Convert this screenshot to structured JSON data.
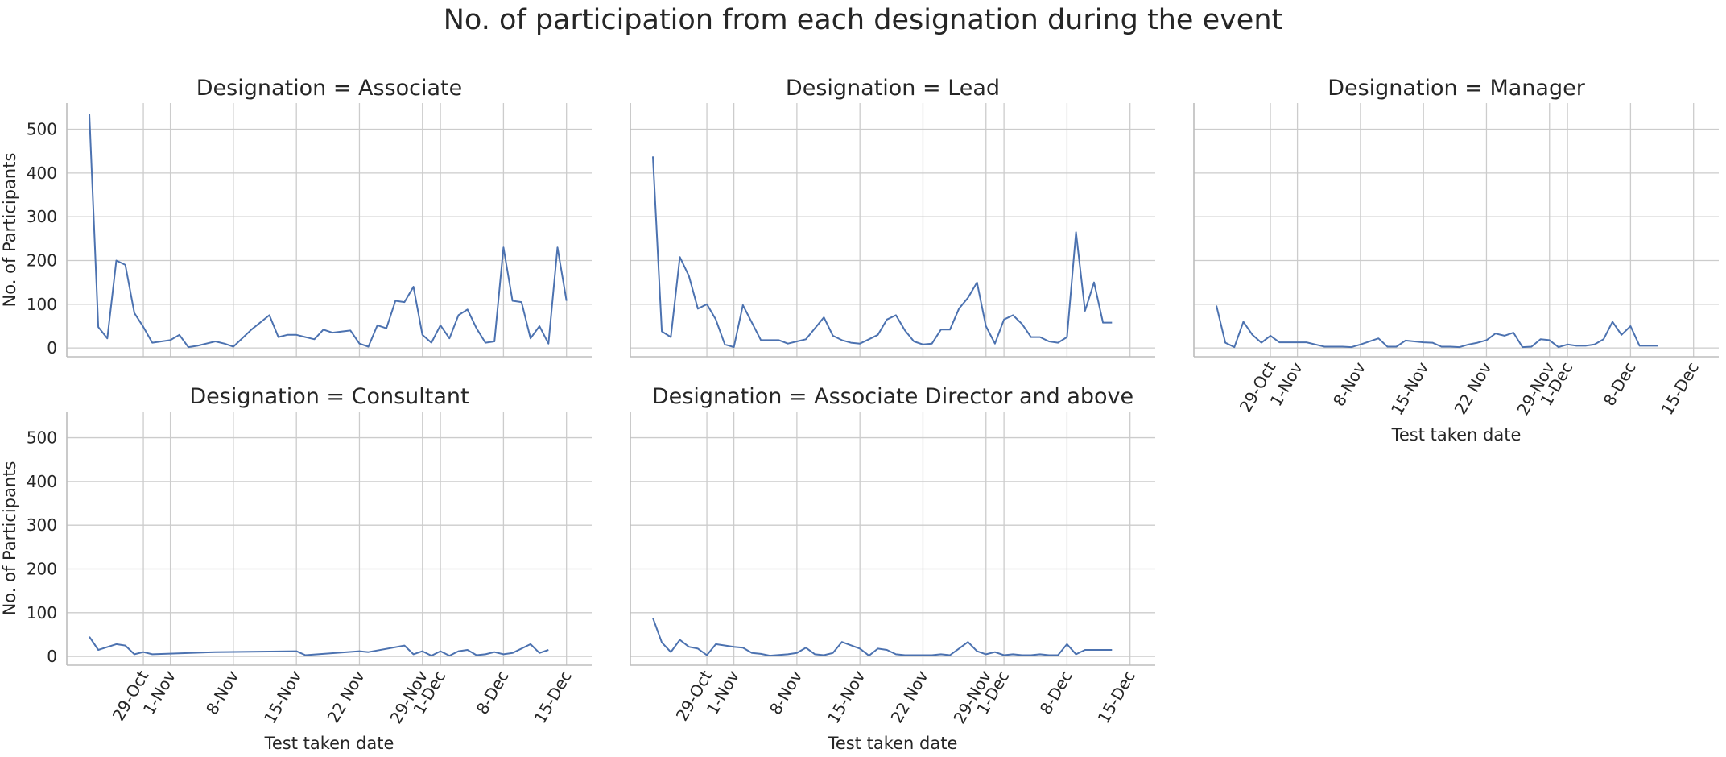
{
  "chart_data": {
    "type": "line",
    "title": "No. of participation from each designation during the event",
    "xlabel": "Test taken date",
    "ylabel": "No. of Participants",
    "ylim": [
      -20,
      560
    ],
    "yticks": [
      0,
      100,
      200,
      300,
      400,
      500
    ],
    "x_range_days": [
      -8.5,
      49.8
    ],
    "xticks": [
      {
        "label": "29-Oct",
        "day": 0
      },
      {
        "label": "1-Nov",
        "day": 3
      },
      {
        "label": "8-Nov",
        "day": 10
      },
      {
        "label": "15-Nov",
        "day": 17
      },
      {
        "label": "22 Nov",
        "day": 24
      },
      {
        "label": "29-Nov",
        "day": 31
      },
      {
        "label": "1-Dec",
        "day": 33
      },
      {
        "label": "8-Dec",
        "day": 40
      },
      {
        "label": "15-Dec",
        "day": 47
      }
    ],
    "grid": true,
    "line_color": "#4c72b0",
    "panel_title_prefix": "Designation = ",
    "panels": [
      {
        "name": "Associate",
        "x": [
          -6,
          -5,
          -4,
          -3,
          -2,
          -1,
          0,
          1,
          3,
          4,
          5,
          6,
          8,
          9,
          10,
          12,
          14,
          15,
          16,
          17,
          18,
          19,
          20,
          21,
          23,
          24,
          25,
          26,
          27,
          28,
          29,
          30,
          31,
          32,
          33,
          34,
          35,
          36,
          37,
          38,
          39,
          40,
          41,
          42,
          43,
          44,
          45,
          46,
          47
        ],
        "y": [
          535,
          48,
          22,
          200,
          190,
          80,
          48,
          12,
          18,
          30,
          2,
          5,
          15,
          10,
          3,
          42,
          75,
          25,
          30,
          30,
          25,
          20,
          42,
          35,
          40,
          10,
          3,
          52,
          45,
          108,
          105,
          140,
          30,
          12,
          52,
          22,
          75,
          88,
          45,
          12,
          15,
          230,
          108,
          105,
          22,
          50,
          10,
          230,
          108
        ]
      },
      {
        "name": "Lead",
        "x": [
          -6,
          -5,
          -4,
          -3,
          -2,
          -1,
          0,
          1,
          2,
          3,
          4,
          6,
          8,
          9,
          10,
          11,
          13,
          14,
          15,
          16,
          17,
          18,
          19,
          20,
          21,
          22,
          23,
          24,
          25,
          26,
          27,
          28,
          29,
          30,
          31,
          32,
          33,
          34,
          35,
          36,
          37,
          38,
          39,
          40,
          41,
          42,
          43,
          44,
          45
        ],
        "y": [
          438,
          38,
          25,
          208,
          165,
          90,
          100,
          65,
          8,
          2,
          98,
          18,
          18,
          10,
          15,
          20,
          70,
          28,
          18,
          12,
          10,
          20,
          30,
          65,
          75,
          40,
          15,
          8,
          10,
          42,
          42,
          90,
          115,
          150,
          50,
          10,
          65,
          75,
          55,
          25,
          25,
          15,
          12,
          25,
          265,
          85,
          150,
          58,
          58
        ]
      },
      {
        "name": "Manager",
        "x": [
          -6,
          -5,
          -4,
          -3,
          -2,
          -1,
          0,
          1,
          2,
          3,
          4,
          5,
          6,
          7,
          8,
          9,
          10,
          12,
          13,
          14,
          15,
          16,
          17,
          18,
          19,
          20,
          21,
          22,
          23,
          24,
          25,
          26,
          27,
          28,
          29,
          30,
          31,
          32,
          33,
          34,
          35,
          36,
          37,
          38,
          39,
          40,
          41,
          42,
          43
        ],
        "y": [
          97,
          12,
          2,
          60,
          30,
          12,
          28,
          13,
          13,
          13,
          13,
          8,
          3,
          3,
          3,
          2,
          8,
          22,
          3,
          3,
          17,
          15,
          13,
          12,
          3,
          3,
          2,
          8,
          12,
          18,
          33,
          28,
          35,
          2,
          3,
          20,
          18,
          2,
          8,
          5,
          5,
          8,
          20,
          60,
          30,
          50,
          5,
          5,
          5
        ]
      },
      {
        "name": "Consultant",
        "x": [
          -6,
          -5,
          -3,
          -2,
          -1,
          0,
          1,
          8,
          17,
          18,
          24,
          25,
          29,
          30,
          31,
          32,
          33,
          34,
          35,
          36,
          37,
          38,
          39,
          40,
          41,
          43,
          44,
          45
        ],
        "y": [
          45,
          15,
          28,
          25,
          5,
          10,
          5,
          10,
          12,
          3,
          12,
          10,
          25,
          5,
          12,
          2,
          12,
          2,
          12,
          15,
          3,
          5,
          10,
          5,
          8,
          28,
          8,
          15
        ]
      },
      {
        "name": "Associate Director and above",
        "x": [
          -6,
          -5,
          -4,
          -3,
          -2,
          -1,
          0,
          1,
          3,
          4,
          5,
          6,
          7,
          9,
          10,
          11,
          12,
          13,
          14,
          15,
          17,
          18,
          19,
          20,
          21,
          22,
          23,
          25,
          26,
          27,
          28,
          29,
          30,
          31,
          32,
          33,
          34,
          35,
          36,
          37,
          38,
          39,
          40,
          41,
          42,
          43,
          44,
          45
        ],
        "y": [
          88,
          32,
          10,
          38,
          22,
          18,
          3,
          28,
          22,
          20,
          8,
          6,
          2,
          5,
          8,
          20,
          5,
          3,
          8,
          33,
          18,
          2,
          18,
          15,
          5,
          3,
          3,
          3,
          5,
          3,
          18,
          33,
          12,
          5,
          10,
          3,
          5,
          3,
          3,
          5,
          3,
          3,
          28,
          5,
          15,
          15,
          15,
          15
        ]
      }
    ]
  }
}
